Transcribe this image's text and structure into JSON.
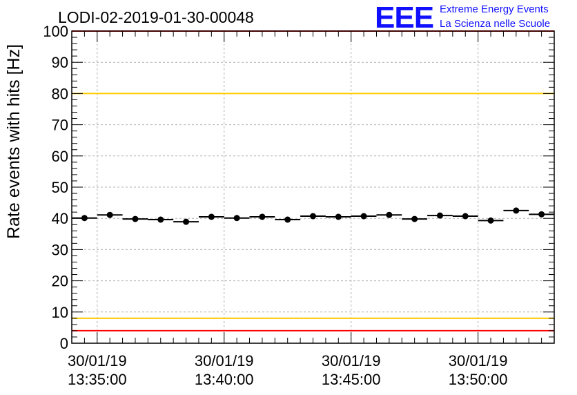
{
  "colors": {
    "logo": "#1010ff",
    "threshold_high": "#ff0000",
    "threshold_mid": "#ffcc00",
    "marker": "#000000",
    "grid": "#b0b0b0"
  },
  "logo": {
    "letters": "EEE",
    "line1": "Extreme Energy Events",
    "line2": "La Scienza nelle Scuole"
  },
  "chart_data": {
    "type": "scatter",
    "title": "LODI-02-2019-01-30-00048",
    "xlabel": "",
    "ylabel": "Rate events with hits [Hz]",
    "ylim": [
      0,
      100
    ],
    "y_ticks": [
      0,
      10,
      20,
      30,
      40,
      50,
      60,
      70,
      80,
      90,
      100
    ],
    "x_range_minutes": [
      -1.0,
      18.0
    ],
    "x_ticks": [
      {
        "minute": 0,
        "date": "30/01/19",
        "time": "13:35:00"
      },
      {
        "minute": 5,
        "date": "30/01/19",
        "time": "13:40:00"
      },
      {
        "minute": 10,
        "date": "30/01/19",
        "time": "13:45:00"
      },
      {
        "minute": 15,
        "date": "30/01/19",
        "time": "13:50:00"
      }
    ],
    "bin_width_minutes": 1,
    "grid": true,
    "series": [
      {
        "name": "rate",
        "x_minutes": [
          -0.5,
          0.5,
          1.5,
          2.5,
          3.5,
          4.5,
          5.5,
          6.5,
          7.5,
          8.5,
          9.5,
          10.5,
          11.5,
          12.5,
          13.5,
          14.5,
          15.5,
          16.5,
          17.5
        ],
        "values": [
          40.1,
          41.1,
          39.8,
          39.6,
          38.9,
          40.5,
          40.1,
          40.5,
          39.6,
          40.7,
          40.5,
          40.7,
          41.1,
          39.8,
          40.9,
          40.7,
          39.3,
          42.5,
          41.3
        ]
      }
    ],
    "reference_lines": [
      {
        "name": "upper-limit",
        "value": 100,
        "color": "#ff0000"
      },
      {
        "name": "upper-warning",
        "value": 80,
        "color": "#ffcc00"
      },
      {
        "name": "lower-warning",
        "value": 8,
        "color": "#ffcc00"
      },
      {
        "name": "lower-limit",
        "value": 4,
        "color": "#ff0000"
      }
    ]
  }
}
